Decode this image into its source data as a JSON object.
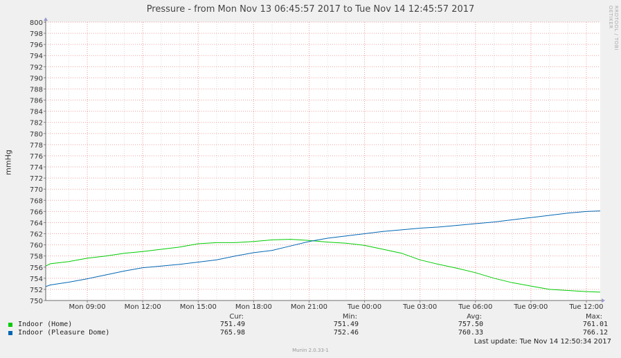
{
  "chart_data": {
    "type": "line",
    "title": "Pressure - from Mon Nov 13 06:45:57 2017 to Tue Nov 14 12:45:57 2017",
    "ylabel": "mmHg",
    "xlabel": "",
    "ylim": [
      750,
      800
    ],
    "yticks": [
      750,
      752,
      754,
      756,
      758,
      760,
      762,
      764,
      766,
      768,
      770,
      772,
      774,
      776,
      778,
      780,
      782,
      784,
      786,
      788,
      790,
      792,
      794,
      796,
      798,
      800
    ],
    "xlim": [
      "Mon 06:45",
      "Tue 12:45"
    ],
    "xticks": [
      {
        "label": "Mon 09:00",
        "hour": 9
      },
      {
        "label": "Mon 12:00",
        "hour": 12
      },
      {
        "label": "Mon 15:00",
        "hour": 15
      },
      {
        "label": "Mon 18:00",
        "hour": 18
      },
      {
        "label": "Mon 21:00",
        "hour": 21
      },
      {
        "label": "Tue 00:00",
        "hour": 24
      },
      {
        "label": "Tue 03:00",
        "hour": 27
      },
      {
        "label": "Tue 06:00",
        "hour": 30
      },
      {
        "label": "Tue 09:00",
        "hour": 33
      },
      {
        "label": "Tue 12:00",
        "hour": 36
      }
    ],
    "grid": true,
    "legend_position": "bottom",
    "series": [
      {
        "name": "Indoor (Home)",
        "color": "#00cc00",
        "x": [
          6.75,
          7,
          8,
          9,
          10,
          11,
          12,
          13,
          14,
          15,
          16,
          17,
          18,
          19,
          20,
          21,
          22,
          23,
          24,
          25,
          26,
          27,
          28,
          29,
          30,
          31,
          32,
          33,
          34,
          35,
          36,
          36.75
        ],
        "y": [
          756.2,
          756.6,
          757.0,
          757.6,
          758.0,
          758.5,
          758.8,
          759.2,
          759.6,
          760.2,
          760.4,
          760.4,
          760.6,
          760.9,
          761.0,
          760.8,
          760.5,
          760.3,
          759.9,
          759.2,
          758.5,
          757.3,
          756.5,
          755.8,
          755.0,
          754.0,
          753.2,
          752.6,
          752.0,
          751.8,
          751.6,
          751.5
        ],
        "cur": "751.49",
        "min": "751.49",
        "avg": "757.50",
        "max": "761.01"
      },
      {
        "name": "Indoor (Pleasure Dome)",
        "color": "#0066b3",
        "x": [
          6.75,
          7,
          8,
          9,
          10,
          11,
          12,
          13,
          14,
          15,
          16,
          17,
          18,
          19,
          20,
          21,
          22,
          23,
          24,
          25,
          26,
          27,
          28,
          29,
          30,
          31,
          32,
          33,
          34,
          35,
          36,
          36.75
        ],
        "y": [
          752.5,
          752.8,
          753.3,
          753.9,
          754.6,
          755.3,
          755.9,
          756.2,
          756.5,
          756.9,
          757.3,
          758.0,
          758.6,
          759.0,
          759.8,
          760.6,
          761.2,
          761.6,
          762.0,
          762.4,
          762.7,
          763.0,
          763.2,
          763.5,
          763.8,
          764.1,
          764.5,
          764.9,
          765.3,
          765.7,
          766.0,
          766.1
        ],
        "cur": "765.98",
        "min": "752.46",
        "avg": "760.33",
        "max": "766.12"
      }
    ]
  },
  "legend_headers": {
    "cur": "Cur:",
    "min": "Min:",
    "avg": "Avg:",
    "max": "Max:"
  },
  "last_update": "Last update:  Tue Nov 14 12:50:34 2017",
  "side_text": "RRDTOOL / TOBI OETIKER",
  "footer": "Munin 2.0.33-1"
}
